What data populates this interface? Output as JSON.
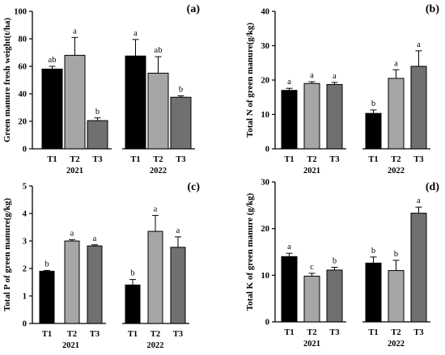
{
  "figure": {
    "panels": [
      {
        "label": "(a)",
        "chart_data": {
          "type": "bar",
          "ylabel": "Green manure fresh weight(t/ha)",
          "ylim": [
            0,
            100
          ],
          "yticks": [
            "0",
            "20",
            "40",
            "60",
            "80",
            "100"
          ],
          "groups": [
            {
              "year": "2021",
              "bars": [
                {
                  "cat": "T1",
                  "value": 58,
                  "err": 2,
                  "sig": "ab",
                  "color": "#000000"
                },
                {
                  "cat": "T2",
                  "value": 68,
                  "err": 13,
                  "sig": "a",
                  "color": "#a6a6a6"
                },
                {
                  "cat": "T3",
                  "value": 20.5,
                  "err": 2,
                  "sig": "b",
                  "color": "#707070"
                }
              ]
            },
            {
              "year": "2022",
              "bars": [
                {
                  "cat": "T1",
                  "value": 67.5,
                  "err": 12,
                  "sig": "a",
                  "color": "#000000"
                },
                {
                  "cat": "T2",
                  "value": 55,
                  "err": 12,
                  "sig": "ab",
                  "color": "#a6a6a6"
                },
                {
                  "cat": "T3",
                  "value": 37.5,
                  "err": 1,
                  "sig": "b",
                  "color": "#707070"
                }
              ]
            }
          ]
        }
      },
      {
        "label": "(b)",
        "chart_data": {
          "type": "bar",
          "ylabel": "Total N of green manure(g/kg)",
          "ylim": [
            0,
            40
          ],
          "yticks": [
            "0",
            "10",
            "20",
            "30",
            "40"
          ],
          "groups": [
            {
              "year": "2021",
              "bars": [
                {
                  "cat": "T1",
                  "value": 17,
                  "err": 0.6,
                  "sig": "a",
                  "color": "#000000"
                },
                {
                  "cat": "T2",
                  "value": 19,
                  "err": 0.5,
                  "sig": "a",
                  "color": "#a6a6a6"
                },
                {
                  "cat": "T3",
                  "value": 18.7,
                  "err": 0.6,
                  "sig": "a",
                  "color": "#707070"
                }
              ]
            },
            {
              "year": "2022",
              "bars": [
                {
                  "cat": "T1",
                  "value": 10.3,
                  "err": 1,
                  "sig": "b",
                  "color": "#000000"
                },
                {
                  "cat": "T2",
                  "value": 20.5,
                  "err": 2.5,
                  "sig": "a",
                  "color": "#a6a6a6"
                },
                {
                  "cat": "T3",
                  "value": 24,
                  "err": 4.5,
                  "sig": "a",
                  "color": "#707070"
                }
              ]
            }
          ]
        }
      },
      {
        "label": "(c)",
        "chart_data": {
          "type": "bar",
          "ylabel": "Total P of green manure(g/kg)",
          "ylim": [
            0,
            5
          ],
          "yticks": [
            "0",
            "1",
            "2",
            "3",
            "4",
            "5"
          ],
          "groups": [
            {
              "year": "2021",
              "bars": [
                {
                  "cat": "T1",
                  "value": 1.9,
                  "err": 0.03,
                  "sig": "b",
                  "color": "#000000"
                },
                {
                  "cat": "T2",
                  "value": 3.0,
                  "err": 0.05,
                  "sig": "a",
                  "color": "#a6a6a6"
                },
                {
                  "cat": "T3",
                  "value": 2.82,
                  "err": 0.04,
                  "sig": "a",
                  "color": "#707070"
                }
              ]
            },
            {
              "year": "2022",
              "bars": [
                {
                  "cat": "T1",
                  "value": 1.4,
                  "err": 0.2,
                  "sig": "b",
                  "color": "#000000"
                },
                {
                  "cat": "T2",
                  "value": 3.35,
                  "err": 0.58,
                  "sig": "a",
                  "color": "#a6a6a6"
                },
                {
                  "cat": "T3",
                  "value": 2.77,
                  "err": 0.38,
                  "sig": "a",
                  "color": "#707070"
                }
              ]
            }
          ]
        }
      },
      {
        "label": "(d)",
        "chart_data": {
          "type": "bar",
          "ylabel": "Total K of green manure (g/kg)",
          "ylim": [
            0,
            30
          ],
          "yticks": [
            "0",
            "10",
            "20",
            "30"
          ],
          "groups": [
            {
              "year": "2021",
              "bars": [
                {
                  "cat": "T1",
                  "value": 14,
                  "err": 0.7,
                  "sig": "a",
                  "color": "#000000"
                },
                {
                  "cat": "T2",
                  "value": 9.8,
                  "err": 0.6,
                  "sig": "c",
                  "color": "#a6a6a6"
                },
                {
                  "cat": "T3",
                  "value": 11.1,
                  "err": 0.6,
                  "sig": "b",
                  "color": "#707070"
                }
              ]
            },
            {
              "year": "2022",
              "bars": [
                {
                  "cat": "T1",
                  "value": 12.6,
                  "err": 1.3,
                  "sig": "b",
                  "color": "#000000"
                },
                {
                  "cat": "T2",
                  "value": 11,
                  "err": 2.2,
                  "sig": "b",
                  "color": "#a6a6a6"
                },
                {
                  "cat": "T3",
                  "value": 23.3,
                  "err": 1.3,
                  "sig": "a",
                  "color": "#707070"
                }
              ]
            }
          ]
        }
      }
    ]
  }
}
